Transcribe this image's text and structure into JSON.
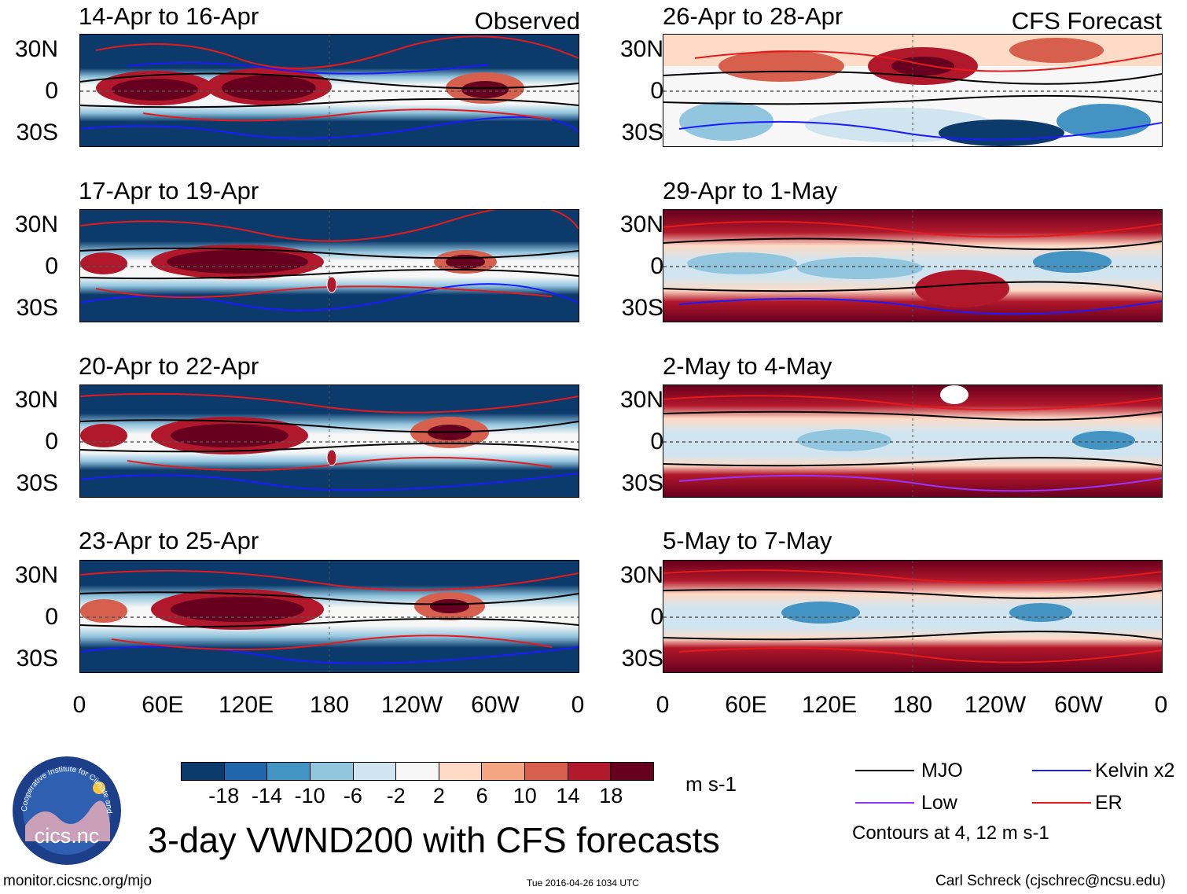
{
  "header": {
    "observed_label": "Observed",
    "forecast_label": "CFS Forecast"
  },
  "panels": {
    "observed": [
      {
        "title": "14-Apr to 16-Apr"
      },
      {
        "title": "17-Apr to 19-Apr"
      },
      {
        "title": "20-Apr to 22-Apr"
      },
      {
        "title": "23-Apr to 25-Apr"
      }
    ],
    "forecast": [
      {
        "title": "26-Apr to 28-Apr"
      },
      {
        "title": "29-Apr to 1-May"
      },
      {
        "title": "2-May to 4-May"
      },
      {
        "title": "5-May to 7-May"
      }
    ]
  },
  "axes": {
    "lat_labels": [
      "30N",
      "0",
      "30S"
    ],
    "lon_labels": [
      "0",
      "60E",
      "120E",
      "180",
      "120W",
      "60W",
      "0"
    ]
  },
  "colorbar": {
    "colors": [
      "#0c3b6b",
      "#2166ac",
      "#4393c3",
      "#92c5de",
      "#d1e5f0",
      "#f7f7f7",
      "#fddbc7",
      "#f4a582",
      "#d6604d",
      "#b2182b",
      "#67001f"
    ],
    "labels": [
      "-18",
      "-14",
      "-10",
      "-6",
      "-2",
      "2",
      "6",
      "10",
      "14",
      "18"
    ],
    "units": "m s-1"
  },
  "legend": {
    "items": [
      {
        "label": "MJO",
        "color": "#000000"
      },
      {
        "label": "Kelvin x2",
        "color": "#1a1aff"
      },
      {
        "label": "Low",
        "color": "#9933ff"
      },
      {
        "label": "ER",
        "color": "#e41a1c"
      }
    ],
    "note": "Contours at 4, 12 m s-1"
  },
  "title": "3-day VWND200 with CFS forecasts",
  "logo": {
    "text": "cics.nc",
    "ring_text": "Cooperative Institute for Climate and Satellites"
  },
  "footer": {
    "url": "monitor.cicsnc.org/mjo",
    "timestamp": "Tue 2016-04-26 1034 UTC",
    "author": "Carl Schreck (cjschrec@ncsu.edu)"
  }
}
